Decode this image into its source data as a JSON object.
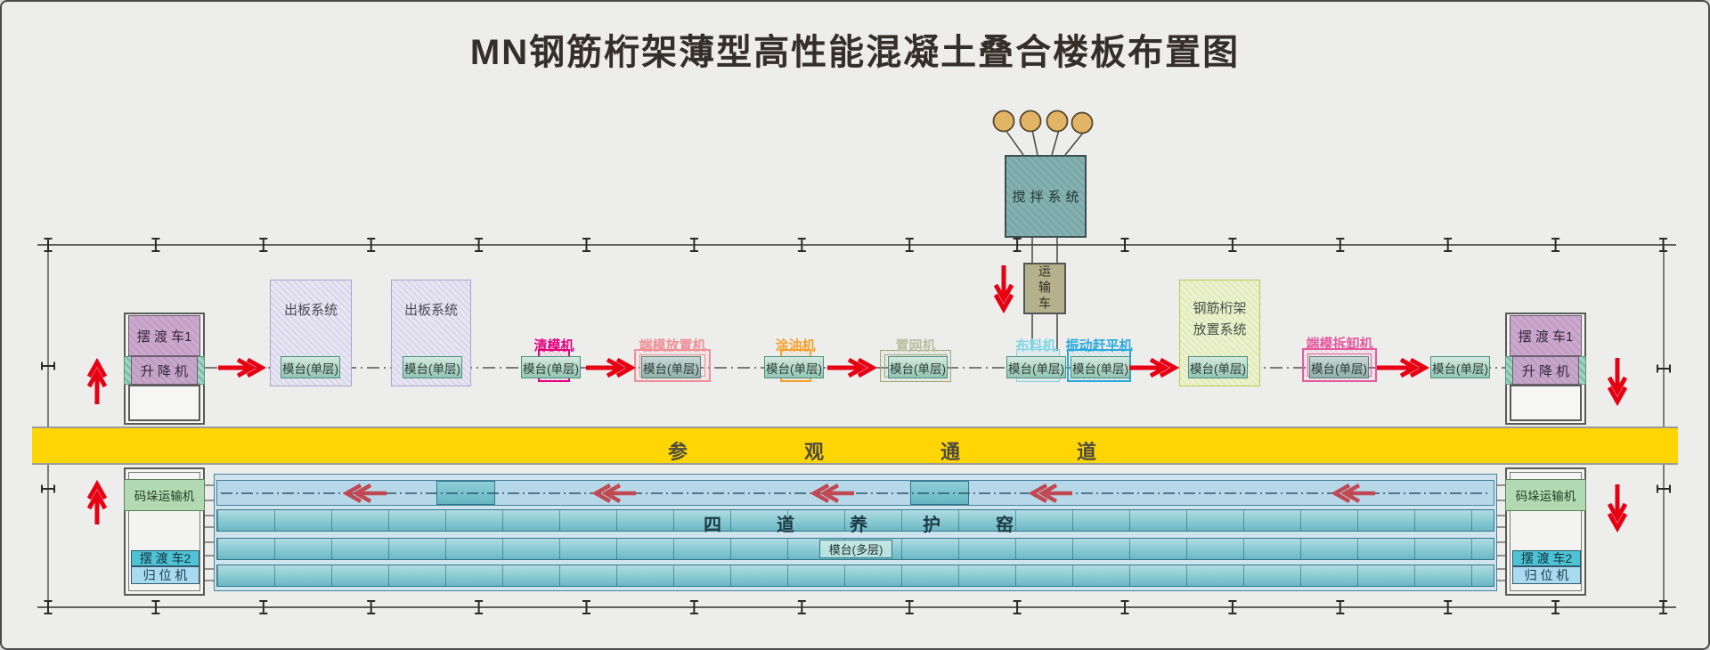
{
  "title": "MN钢筋桁架薄型高性能混凝土叠合楼板布置图",
  "mixing": {
    "system_label": "搅拌系统",
    "transport_label": "运输车"
  },
  "elevators": {
    "ferry1_label": "摆 渡 车1",
    "lift_label": "升 降 机"
  },
  "systems": {
    "board_out_label": "出板系统",
    "truss_line1": "钢筋桁架",
    "truss_line2": "放置系统"
  },
  "platform_single_label": "模台(单层)",
  "platform_multi_label": "模台(多层)",
  "machines": [
    {
      "label": "清模机",
      "color": "#e6007e"
    },
    {
      "label": "端模放置机",
      "color": "#ef8f96"
    },
    {
      "label": "涂油机",
      "color": "#f5a02c"
    },
    {
      "label": "置网机",
      "color": "#b9bf9e"
    },
    {
      "label": "布料机",
      "color": "#7fd6e4"
    },
    {
      "label": "振动赶平机",
      "color": "#2ba9dd"
    },
    {
      "label": "端模拆卸机",
      "color": "#e45a9e"
    }
  ],
  "corridor_label": "参观通道",
  "kiln": {
    "title": "四道养护窑"
  },
  "bottom": {
    "palletizer_label": "码垛运输机",
    "ferry2_label": "摆 渡 车2",
    "repositioner_label": "归 位 机"
  },
  "colors": {
    "background": "#ededec",
    "flow_arrow_red": "#e60012",
    "kiln_arrow_red": "#c14953",
    "corridor_yellow": "#ffd503",
    "platform_teal": "#b0d6c8",
    "mixing_teal": "#79a8a8",
    "transport_khaki": "#b6b18d",
    "ferry_purple": "#c49ec6",
    "palletizer_green": "#b2dab2",
    "ferry2_cyan": "#4fc3d5",
    "repositioner_blue": "#a8daf0",
    "kiln_band_teal": "#8fcdd6",
    "silo_gold": "#e2b566"
  }
}
